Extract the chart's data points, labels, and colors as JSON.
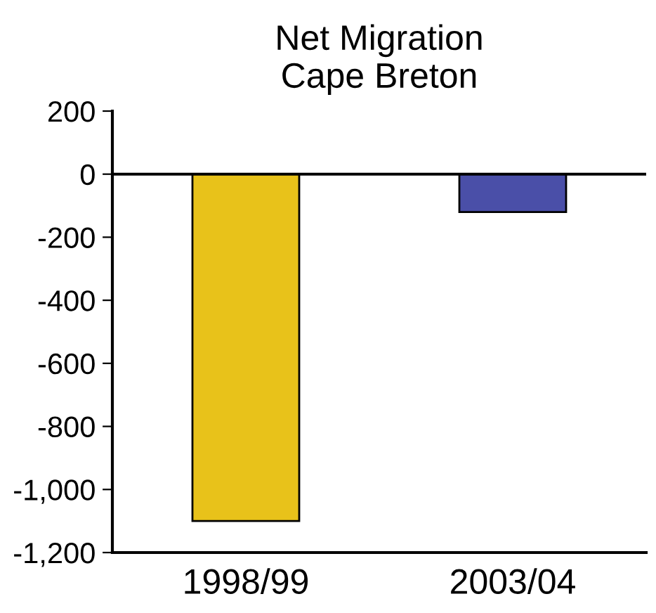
{
  "chart_data": {
    "type": "bar",
    "title": "Net Migration\nCape Breton",
    "categories": [
      "1998/99",
      "2003/04"
    ],
    "values": [
      -1100,
      -120
    ],
    "colors": [
      "#e8c21a",
      "#4a4fa8"
    ],
    "ylim": [
      -1200,
      200
    ],
    "yticks": [
      {
        "value": -1200,
        "label": "-1,200"
      },
      {
        "value": -1000,
        "label": "-1,000"
      },
      -800,
      -600,
      -400,
      -200,
      0,
      200
    ],
    "ref_lines": [
      {
        "axis": "y",
        "value": 0,
        "color": "#000000"
      }
    ],
    "grid": false
  }
}
